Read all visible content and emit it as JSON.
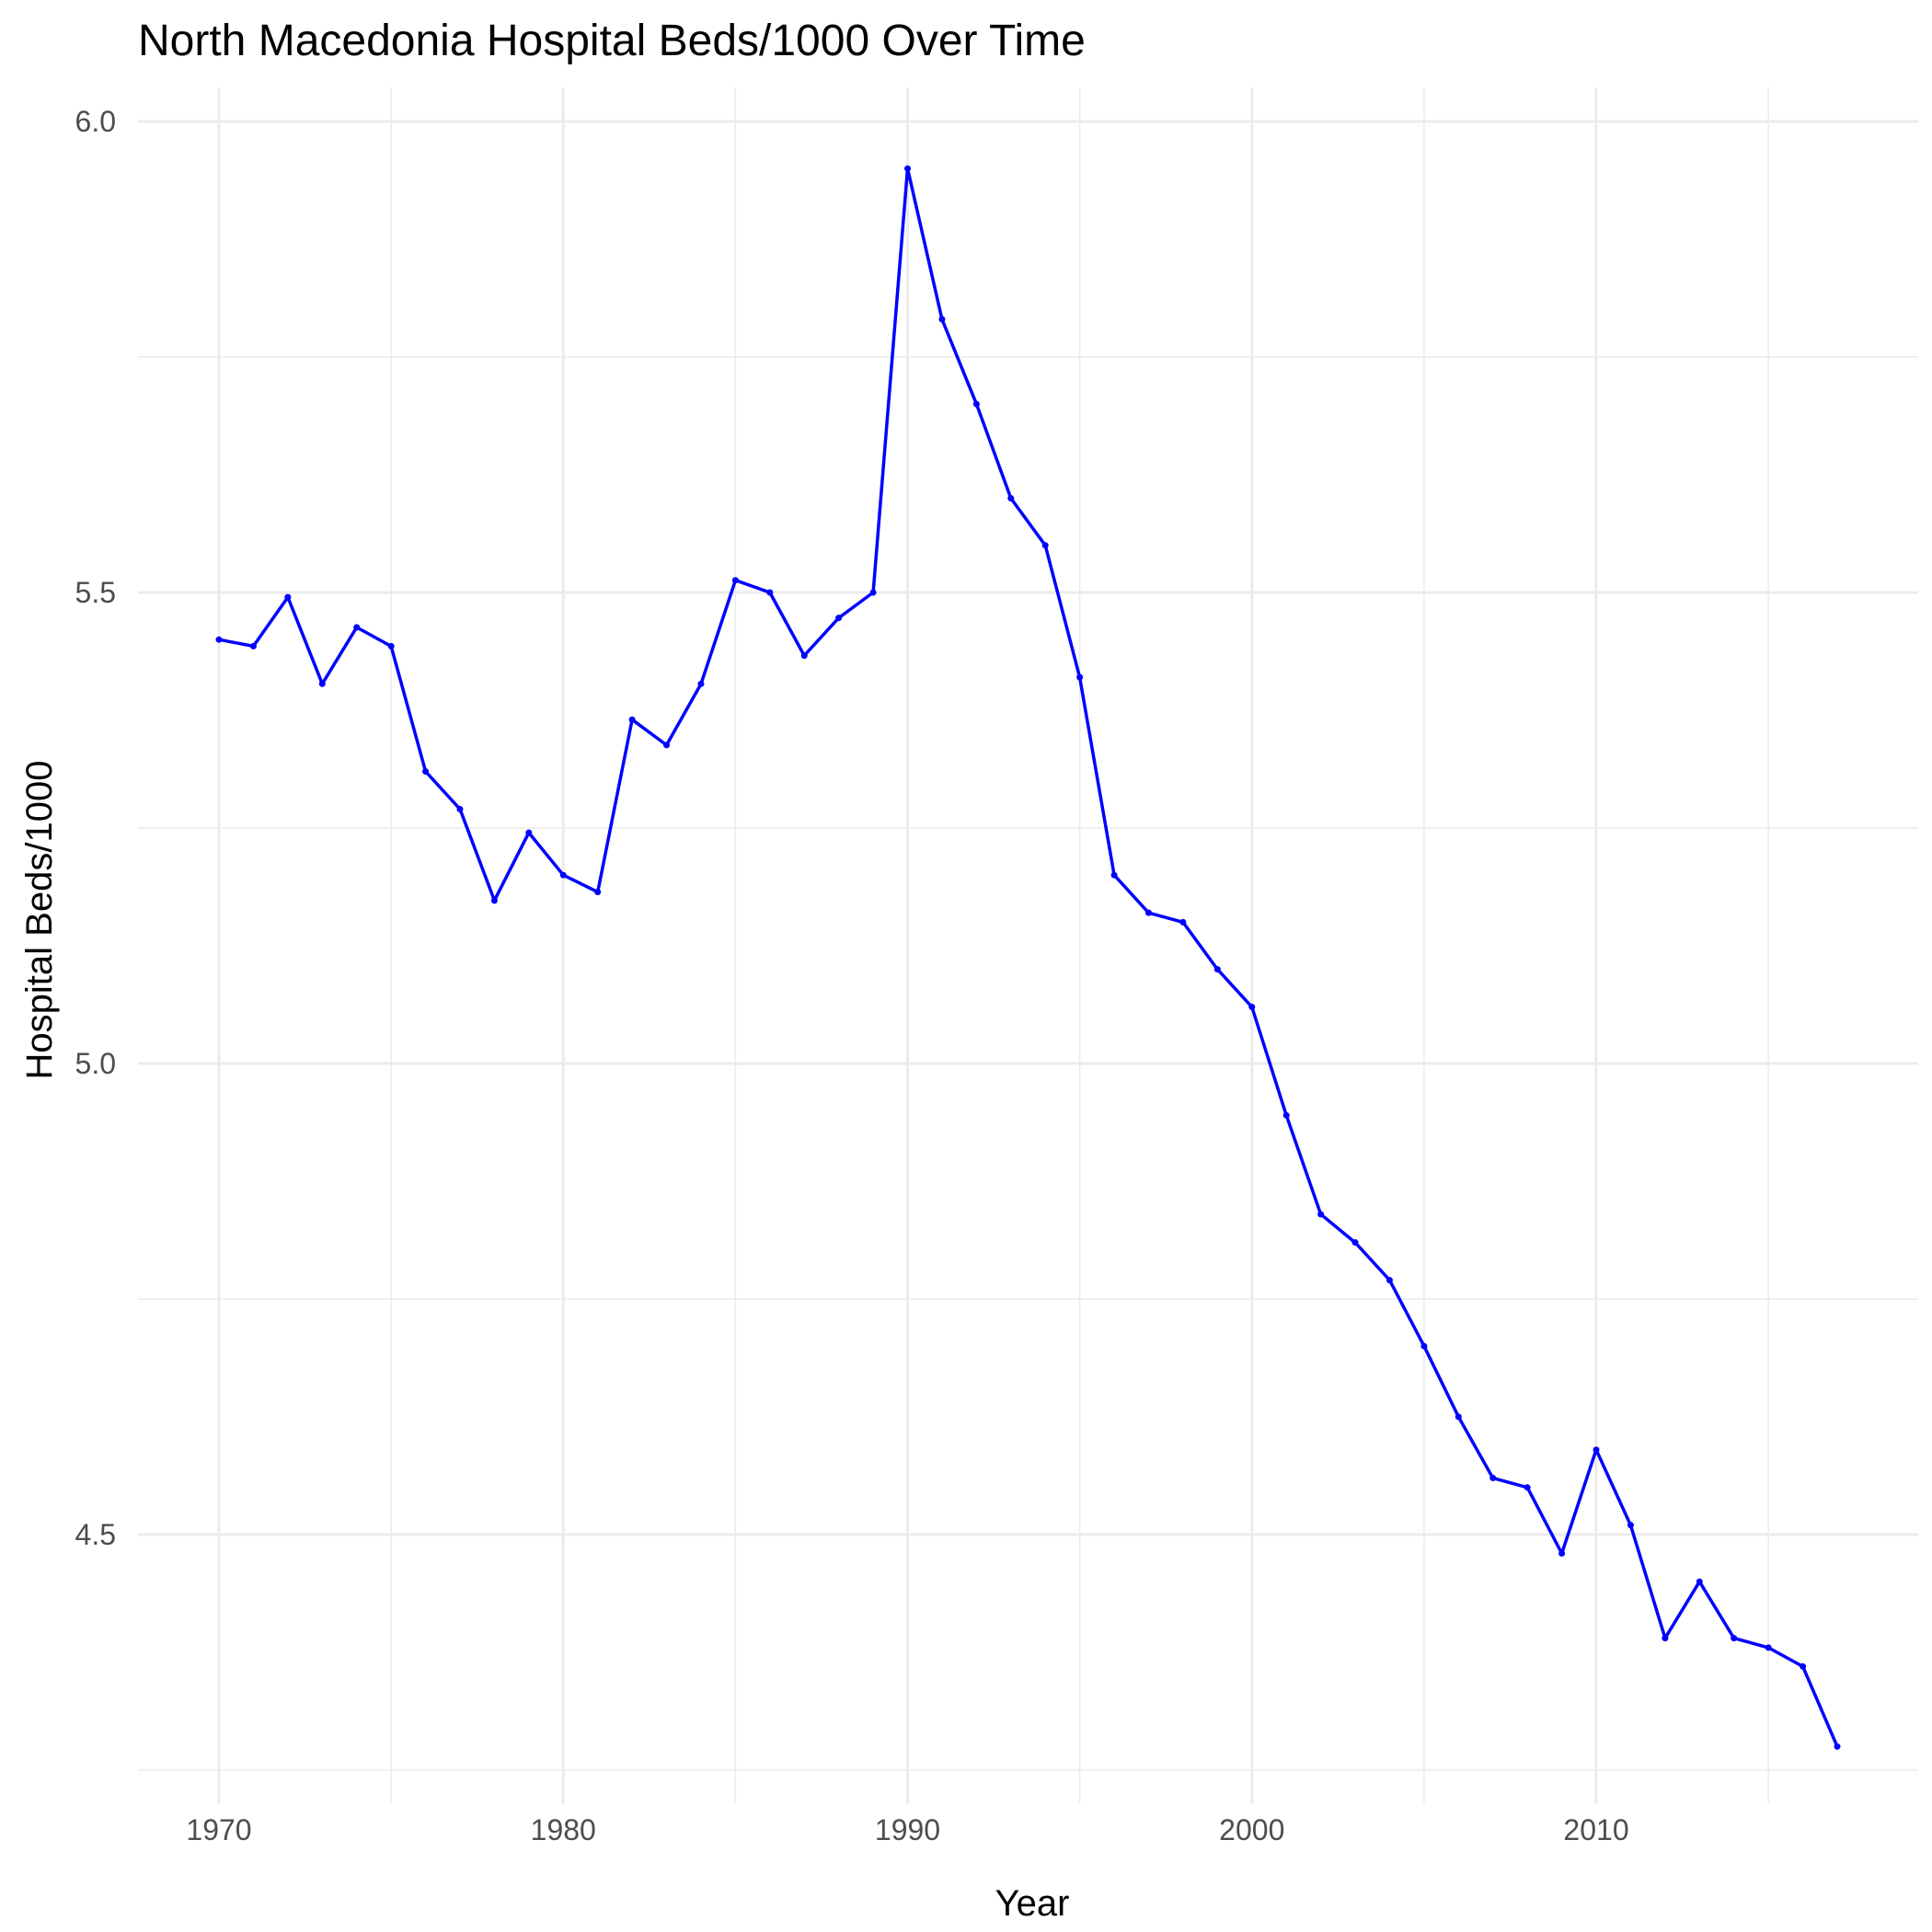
{
  "chart_data": {
    "type": "line",
    "title": "North Macedonia Hospital Beds/1000 Over Time",
    "xlabel": "Year",
    "ylabel": "Hospital Beds/1000",
    "xlim": [
      1970,
      2017
    ],
    "ylim": [
      4.25,
      6.0
    ],
    "x_major_ticks": [
      1970,
      1980,
      1990,
      2000,
      2010
    ],
    "x_tick_labels": [
      "1970",
      "1980",
      "1990",
      "2000",
      "2010"
    ],
    "x_minor_ticks": [
      1975,
      1985,
      1995,
      2005,
      2015
    ],
    "y_major_ticks": [
      4.5,
      5.0,
      5.5,
      6.0
    ],
    "y_tick_labels": [
      "4.5",
      "5.0",
      "5.5",
      "6.0"
    ],
    "y_minor_ticks": [
      4.25,
      4.75,
      5.25,
      5.75
    ],
    "grid": true,
    "legend": "none",
    "line_color": "#0000ff",
    "series": [
      {
        "x": [
          1970,
          1971,
          1972,
          1973,
          1974,
          1975,
          1976,
          1977,
          1978,
          1979,
          1980,
          1981,
          1982,
          1983,
          1984,
          1985,
          1986,
          1987,
          1988,
          1989,
          1990,
          1991,
          1992,
          1993,
          1994,
          1995,
          1996,
          1997,
          1998,
          1999,
          2000,
          2001,
          2002,
          2003,
          2004,
          2005,
          2006,
          2007,
          2008,
          2009,
          2010,
          2011,
          2012,
          2013,
          2014,
          2015,
          2016,
          2017
        ],
        "values": [
          5.45,
          5.443,
          5.495,
          5.403,
          5.463,
          5.443,
          5.31,
          5.27,
          5.173,
          5.245,
          5.2,
          5.182,
          5.365,
          5.338,
          5.403,
          5.513,
          5.5,
          5.433,
          5.473,
          5.5,
          5.95,
          5.79,
          5.7,
          5.6,
          5.55,
          5.41,
          5.2,
          5.16,
          5.15,
          5.1,
          5.06,
          4.945,
          4.84,
          4.81,
          4.77,
          4.7,
          4.625,
          4.56,
          4.55,
          4.48,
          4.59,
          4.51,
          4.39,
          4.45,
          4.39,
          4.38,
          4.36,
          4.275
        ]
      }
    ]
  }
}
